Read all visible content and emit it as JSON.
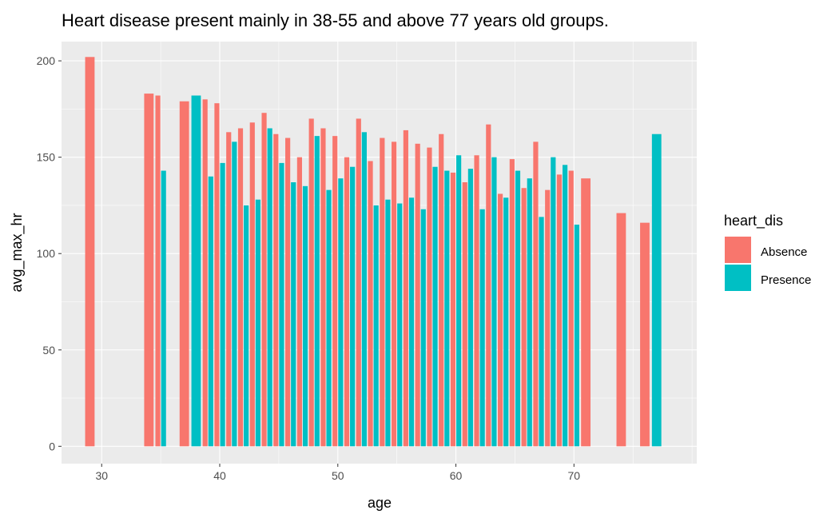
{
  "chart_data": {
    "type": "bar",
    "title": "Heart disease present mainly in 38-55 and above 77 years old groups.",
    "xlabel": "age",
    "ylabel": "avg_max_hr",
    "xlim": [
      26.6,
      80.4
    ],
    "ylim": [
      -9,
      210
    ],
    "xticks": [
      30,
      40,
      50,
      60,
      70
    ],
    "yticks": [
      0,
      50,
      100,
      150,
      200
    ],
    "grid": true,
    "legend": {
      "title": "heart_dis",
      "position": "right"
    },
    "series": [
      {
        "name": "Absence",
        "color": "#F8766D",
        "x": [
          29,
          34,
          35,
          37,
          39,
          40,
          41,
          42,
          43,
          44,
          45,
          46,
          47,
          48,
          49,
          50,
          51,
          52,
          53,
          54,
          55,
          56,
          57,
          58,
          59,
          60,
          61,
          62,
          63,
          64,
          65,
          66,
          67,
          68,
          69,
          70,
          71,
          74,
          76
        ],
        "values": [
          202,
          183,
          182,
          179,
          180,
          178,
          163,
          165,
          168,
          173,
          162,
          160,
          150,
          170,
          165,
          161,
          150,
          170,
          148,
          160,
          158,
          164,
          157,
          155,
          162,
          142,
          137,
          151,
          167,
          131,
          149,
          134,
          158,
          133,
          141,
          143,
          139,
          121,
          116
        ]
      },
      {
        "name": "Presence",
        "color": "#00BFC4",
        "x": [
          35,
          38,
          39,
          40,
          41,
          42,
          43,
          44,
          45,
          46,
          47,
          48,
          49,
          50,
          51,
          52,
          53,
          54,
          55,
          56,
          57,
          58,
          59,
          60,
          61,
          62,
          63,
          64,
          65,
          66,
          67,
          68,
          69,
          70,
          77
        ],
        "values": [
          143,
          182,
          140,
          147,
          158,
          125,
          128,
          165,
          147,
          137,
          135,
          161,
          133,
          139,
          145,
          163,
          125,
          128,
          126,
          129,
          123,
          145,
          143,
          151,
          144,
          123,
          150,
          129,
          143,
          139,
          119,
          150,
          146,
          115,
          162
        ]
      }
    ]
  }
}
